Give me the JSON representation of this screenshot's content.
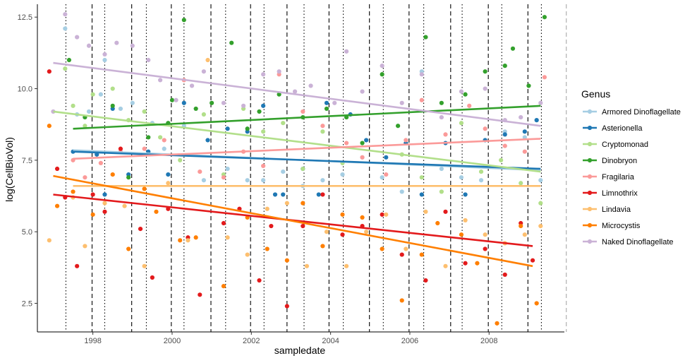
{
  "chart_data": {
    "type": "scatter",
    "xlabel": "sampledate",
    "ylabel": "log(CellBioVol)",
    "xlim": [
      1996.6,
      2009.9
    ],
    "ylim": [
      1.5,
      12.95
    ],
    "x_ticks": [
      {
        "v": 1998,
        "label": "1998"
      },
      {
        "v": 2000,
        "label": "2000"
      },
      {
        "v": 2002,
        "label": "2002"
      },
      {
        "v": 2004,
        "label": "2004"
      },
      {
        "v": 2006,
        "label": "2006"
      },
      {
        "v": 2008,
        "label": "2008"
      }
    ],
    "y_ticks": [
      {
        "v": 2.5,
        "label": "2.5"
      },
      {
        "v": 5.0,
        "label": "5.0"
      },
      {
        "v": 7.5,
        "label": "7.5"
      },
      {
        "v": 10.0,
        "label": "10.0"
      },
      {
        "v": 12.5,
        "label": "12.5"
      }
    ],
    "grid": false,
    "legend": {
      "title": "Genus",
      "position": "right"
    },
    "dotted_vlines": [
      1997.32,
      1998.3,
      1999.35,
      2000.3,
      2001.35,
      2002.32,
      2003.33,
      2004.32,
      2005.33,
      2006.35,
      2007.32,
      2008.32,
      2009.32
    ],
    "dashed_vlines": [
      1997.98,
      1998.98,
      1999.98,
      2000.98,
      2001.98,
      2002.9,
      2003.96,
      2004.98,
      2005.98,
      2007.03,
      2007.98,
      2008.98
    ],
    "faint_vlines": [
      2009.95
    ],
    "series": [
      {
        "name": "Armored Dinoflagellate",
        "color": "#a6cee3",
        "trend": [
          [
            1997.5,
            7.85
          ],
          [
            2009.3,
            7.15
          ]
        ],
        "points": [
          [
            1997.3,
            12.1
          ],
          [
            1997.6,
            9.1
          ],
          [
            1997.9,
            9.2
          ],
          [
            1998.2,
            9.8
          ],
          [
            1998.3,
            11.0
          ],
          [
            1998.7,
            9.3
          ],
          [
            1999.0,
            9.5
          ],
          [
            1999.5,
            8.8
          ],
          [
            1999.8,
            7.9
          ],
          [
            2000.3,
            8.7
          ],
          [
            2000.8,
            6.8
          ],
          [
            2001.4,
            7.2
          ],
          [
            2001.9,
            6.8
          ],
          [
            2002.3,
            6.8
          ],
          [
            2002.8,
            7.1
          ],
          [
            2003.3,
            6.6
          ],
          [
            2003.8,
            6.8
          ],
          [
            2004.3,
            7.0
          ],
          [
            2004.8,
            7.6
          ],
          [
            2005.3,
            6.9
          ],
          [
            2005.8,
            6.4
          ],
          [
            2006.3,
            10.6
          ],
          [
            2006.8,
            7.2
          ],
          [
            2007.3,
            6.9
          ],
          [
            2007.8,
            6.8
          ],
          [
            2008.4,
            8.5
          ],
          [
            2008.9,
            8.3
          ],
          [
            2009.3,
            6.8
          ]
        ]
      },
      {
        "name": "Asterionella",
        "color": "#1f78b4",
        "trend": [
          [
            1997.5,
            7.8
          ],
          [
            2009.3,
            7.2
          ]
        ],
        "points": [
          [
            1997.5,
            7.8
          ],
          [
            1998.1,
            7.7
          ],
          [
            1998.3,
            6.3
          ],
          [
            1998.5,
            9.3
          ],
          [
            1998.9,
            7.0
          ],
          [
            1999.4,
            7.8
          ],
          [
            1999.9,
            7.0
          ],
          [
            2000.3,
            9.5
          ],
          [
            2000.9,
            8.2
          ],
          [
            2001.4,
            8.6
          ],
          [
            2001.9,
            8.5
          ],
          [
            2002.3,
            9.4
          ],
          [
            2002.6,
            6.3
          ],
          [
            2002.8,
            6.3
          ],
          [
            2003.3,
            7.2
          ],
          [
            2003.7,
            6.3
          ],
          [
            2003.9,
            9.5
          ],
          [
            2004.5,
            9.1
          ],
          [
            2004.9,
            8.2
          ],
          [
            2005.4,
            7.6
          ],
          [
            2005.9,
            8.1
          ],
          [
            2006.3,
            6.3
          ],
          [
            2006.9,
            8.1
          ],
          [
            2007.4,
            6.3
          ],
          [
            2007.9,
            8.2
          ],
          [
            2008.4,
            8.4
          ],
          [
            2008.9,
            8.5
          ],
          [
            2009.2,
            8.9
          ]
        ]
      },
      {
        "name": "Cryptomonad",
        "color": "#b2df8a",
        "trend": [
          [
            1997.0,
            9.2
          ],
          [
            2009.3,
            7.1
          ]
        ],
        "points": [
          [
            1997.3,
            10.7
          ],
          [
            1997.5,
            9.4
          ],
          [
            1997.8,
            8.7
          ],
          [
            1998.0,
            9.8
          ],
          [
            1998.5,
            10.0
          ],
          [
            1998.9,
            8.9
          ],
          [
            1999.3,
            9.2
          ],
          [
            1999.7,
            8.3
          ],
          [
            2000.2,
            7.5
          ],
          [
            2000.8,
            9.1
          ],
          [
            2001.3,
            7.0
          ],
          [
            2001.8,
            9.3
          ],
          [
            2002.3,
            8.5
          ],
          [
            2002.8,
            8.8
          ],
          [
            2003.3,
            7.2
          ],
          [
            2003.8,
            8.5
          ],
          [
            2004.3,
            7.4
          ],
          [
            2004.8,
            8.1
          ],
          [
            2005.3,
            10.5
          ],
          [
            2005.8,
            7.7
          ],
          [
            2006.3,
            6.9
          ],
          [
            2006.8,
            6.4
          ],
          [
            2007.3,
            8.8
          ],
          [
            2007.8,
            7.1
          ],
          [
            2008.3,
            7.5
          ],
          [
            2008.8,
            6.7
          ],
          [
            2009.3,
            6.0
          ]
        ]
      },
      {
        "name": "Dinobryon",
        "color": "#33a02c",
        "trend": [
          [
            1997.5,
            8.6
          ],
          [
            2009.3,
            9.4
          ]
        ],
        "points": [
          [
            1997.4,
            11.0
          ],
          [
            1997.8,
            9.0
          ],
          [
            1998.5,
            9.4
          ],
          [
            1998.9,
            6.9
          ],
          [
            1999.4,
            8.3
          ],
          [
            1999.9,
            8.8
          ],
          [
            2000.0,
            9.6
          ],
          [
            2000.3,
            12.4
          ],
          [
            2000.6,
            9.3
          ],
          [
            2001.0,
            9.5
          ],
          [
            2001.5,
            11.6
          ],
          [
            2001.9,
            8.6
          ],
          [
            2002.2,
            9.2
          ],
          [
            2002.7,
            9.8
          ],
          [
            2003.3,
            9.0
          ],
          [
            2003.9,
            9.3
          ],
          [
            2004.4,
            9.0
          ],
          [
            2004.8,
            8.1
          ],
          [
            2005.3,
            10.5
          ],
          [
            2005.7,
            8.7
          ],
          [
            2006.4,
            11.8
          ],
          [
            2006.8,
            9.5
          ],
          [
            2007.4,
            9.8
          ],
          [
            2007.9,
            10.6
          ],
          [
            2008.4,
            10.8
          ],
          [
            2008.6,
            11.4
          ],
          [
            2009.0,
            10.1
          ],
          [
            2009.4,
            12.5
          ]
        ]
      },
      {
        "name": "Fragilaria",
        "color": "#fb9a99",
        "trend": [
          [
            1997.5,
            7.55
          ],
          [
            2009.3,
            8.25
          ]
        ],
        "points": [
          [
            1997.5,
            7.5
          ],
          [
            1997.8,
            6.9
          ],
          [
            1998.2,
            7.4
          ],
          [
            1998.7,
            7.8
          ],
          [
            1999.3,
            7.9
          ],
          [
            1999.8,
            8.2
          ],
          [
            2000.3,
            10.3
          ],
          [
            2000.7,
            7.1
          ],
          [
            2001.3,
            6.9
          ],
          [
            2001.8,
            7.8
          ],
          [
            2002.3,
            7.3
          ],
          [
            2002.7,
            10.5
          ],
          [
            2003.3,
            9.2
          ],
          [
            2003.8,
            8.7
          ],
          [
            2004.4,
            8.1
          ],
          [
            2004.8,
            7.6
          ],
          [
            2005.4,
            7.0
          ],
          [
            2005.9,
            8.2
          ],
          [
            2006.3,
            9.6
          ],
          [
            2006.9,
            8.4
          ],
          [
            2007.5,
            9.4
          ],
          [
            2007.9,
            8.6
          ],
          [
            2008.4,
            8.0
          ],
          [
            2008.9,
            7.8
          ],
          [
            2009.4,
            10.4
          ]
        ]
      },
      {
        "name": "Limnothrix",
        "color": "#e31a1c",
        "trend": [
          [
            1997.0,
            6.3
          ],
          [
            2009.1,
            4.5
          ]
        ],
        "points": [
          [
            1996.9,
            10.6
          ],
          [
            1997.1,
            7.2
          ],
          [
            1997.3,
            6.2
          ],
          [
            1997.6,
            3.8
          ],
          [
            1998.0,
            6.3
          ],
          [
            1998.3,
            5.7
          ],
          [
            1998.7,
            7.9
          ],
          [
            1999.2,
            5.1
          ],
          [
            1999.5,
            3.4
          ],
          [
            1999.9,
            5.8
          ],
          [
            2000.4,
            4.8
          ],
          [
            2000.7,
            2.8
          ],
          [
            2001.3,
            5.3
          ],
          [
            2001.7,
            5.8
          ],
          [
            2002.2,
            3.3
          ],
          [
            2002.5,
            5.2
          ],
          [
            2002.9,
            2.4
          ],
          [
            2003.3,
            5.2
          ],
          [
            2003.8,
            6.3
          ],
          [
            2004.3,
            4.9
          ],
          [
            2004.8,
            5.2
          ],
          [
            2005.3,
            5.6
          ],
          [
            2005.8,
            4.2
          ],
          [
            2006.4,
            3.3
          ],
          [
            2006.9,
            5.7
          ],
          [
            2007.4,
            3.9
          ],
          [
            2007.9,
            4.4
          ],
          [
            2008.4,
            3.5
          ],
          [
            2008.8,
            5.3
          ],
          [
            2009.1,
            4.0
          ]
        ]
      },
      {
        "name": "Lindavia",
        "color": "#fdbf6f",
        "trend": [
          [
            1997.5,
            6.6
          ],
          [
            2009.3,
            6.6
          ]
        ],
        "points": [
          [
            1996.9,
            4.7
          ],
          [
            1997.5,
            6.2
          ],
          [
            1997.8,
            4.5
          ],
          [
            1998.3,
            6.0
          ],
          [
            1998.8,
            5.9
          ],
          [
            1999.3,
            3.8
          ],
          [
            1999.9,
            6.7
          ],
          [
            2000.4,
            4.7
          ],
          [
            2000.9,
            11.0
          ],
          [
            2001.4,
            4.8
          ],
          [
            2001.9,
            4.2
          ],
          [
            2002.4,
            5.8
          ],
          [
            2002.9,
            6.0
          ],
          [
            2003.4,
            3.8
          ],
          [
            2003.9,
            5.0
          ],
          [
            2004.4,
            3.8
          ],
          [
            2004.9,
            5.0
          ],
          [
            2005.4,
            5.6
          ],
          [
            2005.9,
            4.4
          ],
          [
            2006.4,
            5.7
          ],
          [
            2006.9,
            3.8
          ],
          [
            2007.4,
            5.4
          ],
          [
            2007.9,
            4.9
          ],
          [
            2008.4,
            4.6
          ],
          [
            2008.9,
            4.9
          ],
          [
            2009.3,
            5.2
          ]
        ]
      },
      {
        "name": "Microcystis",
        "color": "#ff7f00",
        "trend": [
          [
            1997.0,
            6.95
          ],
          [
            2009.1,
            3.8
          ]
        ],
        "points": [
          [
            1996.9,
            8.7
          ],
          [
            1997.1,
            5.9
          ],
          [
            1997.5,
            6.4
          ],
          [
            1998.0,
            5.6
          ],
          [
            1998.5,
            7.0
          ],
          [
            1998.9,
            4.4
          ],
          [
            1999.3,
            6.5
          ],
          [
            1999.6,
            5.7
          ],
          [
            2000.2,
            4.7
          ],
          [
            2000.6,
            4.8
          ],
          [
            2001.3,
            3.1
          ],
          [
            2001.9,
            5.5
          ],
          [
            2002.4,
            4.4
          ],
          [
            2002.9,
            4.0
          ],
          [
            2003.3,
            6.0
          ],
          [
            2003.8,
            4.5
          ],
          [
            2004.3,
            5.6
          ],
          [
            2004.8,
            5.5
          ],
          [
            2005.3,
            4.4
          ],
          [
            2005.8,
            2.6
          ],
          [
            2006.3,
            4.2
          ],
          [
            2006.7,
            5.3
          ],
          [
            2007.3,
            4.9
          ],
          [
            2007.7,
            3.9
          ],
          [
            2008.2,
            1.8
          ],
          [
            2008.8,
            5.2
          ],
          [
            2009.2,
            2.5
          ]
        ]
      },
      {
        "name": "Naked Dinoflagellate",
        "color": "#cab2d6",
        "trend": [
          [
            1997.0,
            10.9
          ],
          [
            2009.3,
            8.7
          ]
        ],
        "points": [
          [
            1997.0,
            9.2
          ],
          [
            1997.3,
            12.6
          ],
          [
            1997.6,
            11.8
          ],
          [
            1997.9,
            11.5
          ],
          [
            1998.3,
            11.2
          ],
          [
            1998.6,
            11.6
          ],
          [
            1999.0,
            11.5
          ],
          [
            1999.4,
            11.0
          ],
          [
            1999.7,
            10.3
          ],
          [
            2000.1,
            9.6
          ],
          [
            2000.5,
            10.1
          ],
          [
            2000.8,
            10.6
          ],
          [
            2001.3,
            9.5
          ],
          [
            2001.8,
            9.4
          ],
          [
            2002.3,
            10.5
          ],
          [
            2002.7,
            10.6
          ],
          [
            2003.1,
            9.9
          ],
          [
            2003.5,
            10.1
          ],
          [
            2004.1,
            9.5
          ],
          [
            2004.4,
            11.3
          ],
          [
            2004.8,
            9.9
          ],
          [
            2005.3,
            10.8
          ],
          [
            2005.8,
            9.5
          ],
          [
            2006.3,
            10.5
          ],
          [
            2006.8,
            9.0
          ],
          [
            2007.3,
            9.9
          ],
          [
            2007.9,
            10.0
          ],
          [
            2008.4,
            8.9
          ],
          [
            2008.8,
            9.0
          ],
          [
            2009.3,
            9.5
          ]
        ]
      }
    ]
  }
}
